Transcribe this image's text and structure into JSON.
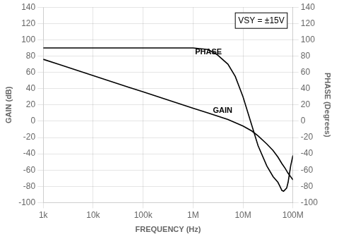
{
  "chart_data": {
    "type": "line",
    "log": "x",
    "grid": true,
    "legend": false,
    "xlabel": "FREQUENCY (Hz)",
    "ylabel": "GAIN (dB)",
    "y2label": "PHASE (Degrees)",
    "xlim": [
      1000,
      100000000
    ],
    "xticks": [
      {
        "value": 1000,
        "label": "1k"
      },
      {
        "value": 10000,
        "label": "10k"
      },
      {
        "value": 100000,
        "label": "100k"
      },
      {
        "value": 1000000,
        "label": "1M"
      },
      {
        "value": 10000000,
        "label": "10M"
      },
      {
        "value": 100000000,
        "label": "100M"
      }
    ],
    "ylim": [
      -100,
      140
    ],
    "yticks": [
      -100,
      -80,
      -60,
      -40,
      -20,
      0,
      20,
      40,
      60,
      80,
      100,
      120,
      140
    ],
    "y2lim": [
      -100,
      140
    ],
    "y2ticks": [
      -100,
      -80,
      -60,
      -40,
      -20,
      0,
      20,
      40,
      60,
      80,
      100,
      120,
      140
    ],
    "series": [
      {
        "name": "GAIN",
        "color": "#000000",
        "x": [
          1000,
          2000,
          5000,
          10000,
          20000,
          50000,
          100000,
          200000,
          500000,
          1000000,
          2000000,
          5000000,
          10000000,
          15000000,
          20000000,
          30000000,
          40000000,
          50000000,
          60000000,
          70000000,
          80000000,
          100000000
        ],
        "values": [
          76,
          70,
          62,
          56,
          50,
          42,
          36,
          30,
          22,
          16,
          10,
          2,
          -6,
          -12,
          -18,
          -28,
          -36,
          -44,
          -52,
          -58,
          -64,
          -72
        ]
      },
      {
        "name": "PHASE",
        "color": "#000000",
        "x": [
          1000,
          10000,
          100000,
          500000,
          1000000,
          2000000,
          3000000,
          5000000,
          7000000,
          10000000,
          15000000,
          20000000,
          30000000,
          40000000,
          50000000,
          55000000,
          60000000,
          65000000,
          70000000,
          75000000,
          80000000,
          90000000,
          100000000
        ],
        "values": [
          90,
          90,
          90,
          90,
          90,
          88,
          82,
          70,
          55,
          30,
          -5,
          -30,
          -55,
          -68,
          -75,
          -80,
          -85,
          -86,
          -84,
          -82,
          -75,
          -55,
          -42
        ]
      }
    ],
    "annotations": [
      {
        "text": "PHASE",
        "x": 1100000,
        "y": 80
      },
      {
        "text": "GAIN",
        "x": 2500000,
        "y": 8
      },
      {
        "text": "VSY = ±15V",
        "position": "top right",
        "box": true
      }
    ]
  }
}
